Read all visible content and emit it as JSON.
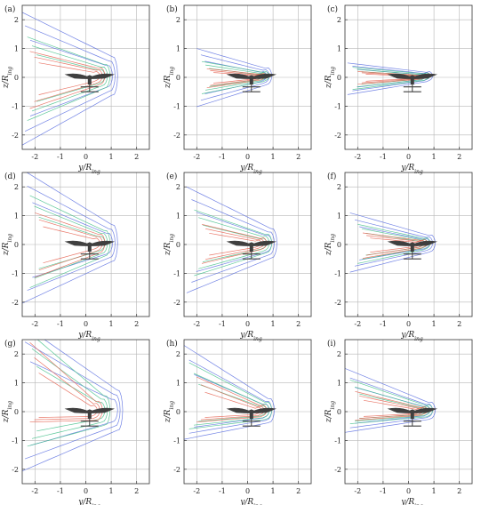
{
  "figure": {
    "xlabel": "y/R",
    "xlabel_sub": "ing",
    "ylabel": "z/R",
    "ylabel_sub": "ing"
  },
  "chart_data": [
    {
      "panel": "(a)",
      "type": "line",
      "xlim": [
        -2.5,
        2.5
      ],
      "ylim": [
        -2.5,
        2.5
      ],
      "xticks": [
        "-2",
        "-1",
        "0",
        "1",
        "2"
      ],
      "yticks": [
        "-2",
        "-1",
        "0",
        "1",
        "2"
      ],
      "grid": true
    },
    {
      "panel": "(b)",
      "type": "line",
      "xlim": [
        -2.5,
        2.5
      ],
      "ylim": [
        -2.5,
        2.5
      ],
      "xticks": [
        "-2",
        "-1",
        "0",
        "1",
        "2"
      ],
      "yticks": [
        "-2",
        "-1",
        "0",
        "1",
        "2"
      ],
      "grid": true
    },
    {
      "panel": "(c)",
      "type": "line",
      "xlim": [
        -2.5,
        2.5
      ],
      "ylim": [
        -2.5,
        2.5
      ],
      "xticks": [
        "-2",
        "-1",
        "0",
        "1",
        "2"
      ],
      "yticks": [
        "-2",
        "-1",
        "0",
        "1",
        "2"
      ],
      "grid": true
    },
    {
      "panel": "(d)",
      "type": "line",
      "xlim": [
        -2.5,
        2.5
      ],
      "ylim": [
        -2.5,
        2.5
      ],
      "xticks": [
        "-2",
        "-1",
        "0",
        "1",
        "2"
      ],
      "yticks": [
        "-2",
        "-1",
        "0",
        "1",
        "2"
      ],
      "grid": true
    },
    {
      "panel": "(e)",
      "type": "line",
      "xlim": [
        -2.5,
        2.5
      ],
      "ylim": [
        -2.5,
        2.5
      ],
      "xticks": [
        "-2",
        "-1",
        "0",
        "1",
        "2"
      ],
      "yticks": [
        "-2",
        "-1",
        "0",
        "1",
        "2"
      ],
      "grid": true
    },
    {
      "panel": "(f)",
      "type": "line",
      "xlim": [
        -2.5,
        2.5
      ],
      "ylim": [
        -2.5,
        2.5
      ],
      "xticks": [
        "-2",
        "-1",
        "0",
        "1",
        "2"
      ],
      "yticks": [
        "-2",
        "-1",
        "0",
        "1",
        "2"
      ],
      "grid": true
    },
    {
      "panel": "(g)",
      "type": "line",
      "xlim": [
        -2.5,
        2.5
      ],
      "ylim": [
        -2.5,
        2.5
      ],
      "xticks": [
        "-2",
        "-1",
        "0",
        "1",
        "2"
      ],
      "yticks": [
        "-2",
        "-1",
        "0",
        "1",
        "2"
      ],
      "grid": true
    },
    {
      "panel": "(h)",
      "type": "line",
      "xlim": [
        -2.5,
        2.5
      ],
      "ylim": [
        -2.5,
        2.5
      ],
      "xticks": [
        "-2",
        "-1",
        "0",
        "1",
        "2"
      ],
      "yticks": [
        "-2",
        "-1",
        "0",
        "1",
        "2"
      ],
      "grid": true
    },
    {
      "panel": "(i)",
      "type": "line",
      "xlim": [
        -2.5,
        2.5
      ],
      "ylim": [
        -2.5,
        2.5
      ],
      "xticks": [
        "-2",
        "-1",
        "0",
        "1",
        "2"
      ],
      "yticks": [
        "-2",
        "-1",
        "0",
        "1",
        "2"
      ],
      "grid": true
    }
  ],
  "colors": {
    "contour_blue": "#5b6fe0",
    "contour_green": "#43c08a",
    "contour_red": "#e5604f",
    "drone": "#3f3f3f",
    "grid": "#b7b7b7"
  }
}
